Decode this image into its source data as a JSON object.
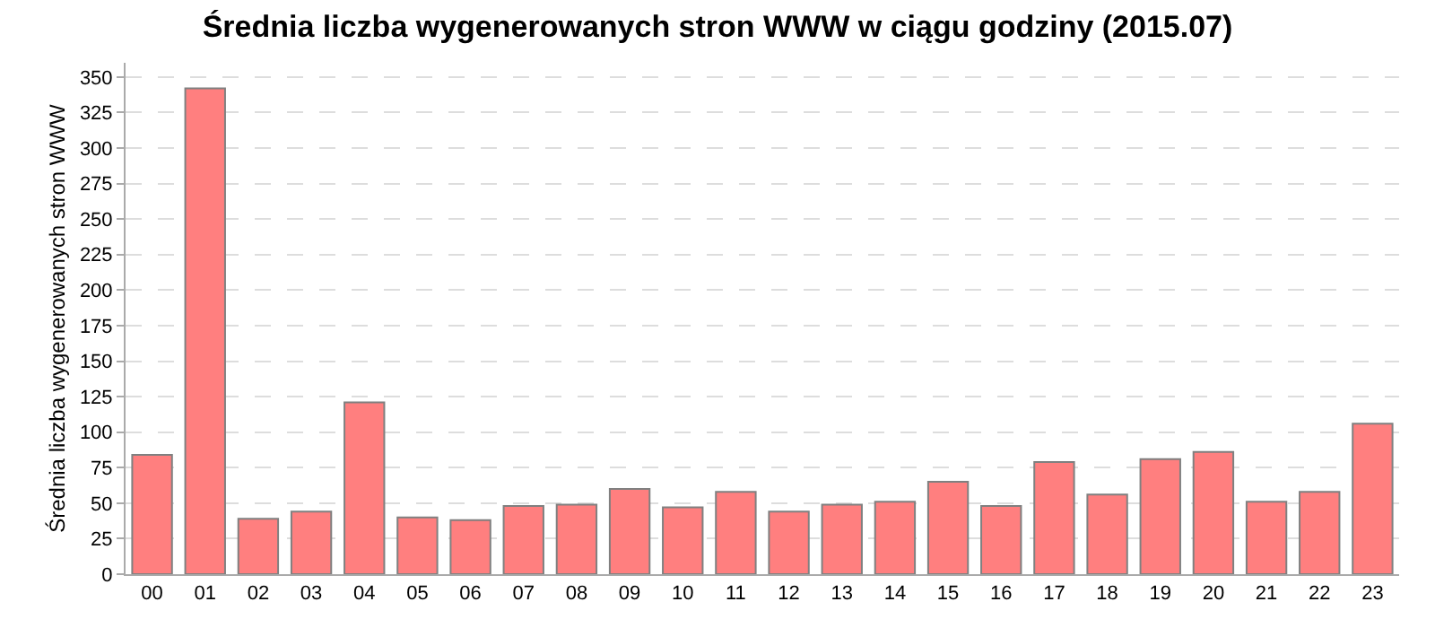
{
  "chart_data": {
    "type": "bar",
    "title": "Średnia liczba wygenerowanych stron WWW w ciągu godziny (2015.07)",
    "ylabel": "Średnia liczba wygenerowanych stron WWW",
    "categories": [
      "00",
      "01",
      "02",
      "03",
      "04",
      "05",
      "06",
      "07",
      "08",
      "09",
      "10",
      "11",
      "12",
      "13",
      "14",
      "15",
      "16",
      "17",
      "18",
      "19",
      "20",
      "21",
      "22",
      "23"
    ],
    "values": [
      84,
      342,
      39,
      44,
      121,
      40,
      38,
      48,
      49,
      60,
      47,
      58,
      44,
      49,
      51,
      65,
      48,
      79,
      56,
      81,
      86,
      51,
      58,
      106
    ],
    "color": "#ff7f7f",
    "ylim": [
      0,
      360
    ],
    "yticks": [
      0,
      25,
      50,
      75,
      100,
      125,
      150,
      175,
      200,
      225,
      250,
      275,
      300,
      325,
      350
    ],
    "grid": "y"
  }
}
